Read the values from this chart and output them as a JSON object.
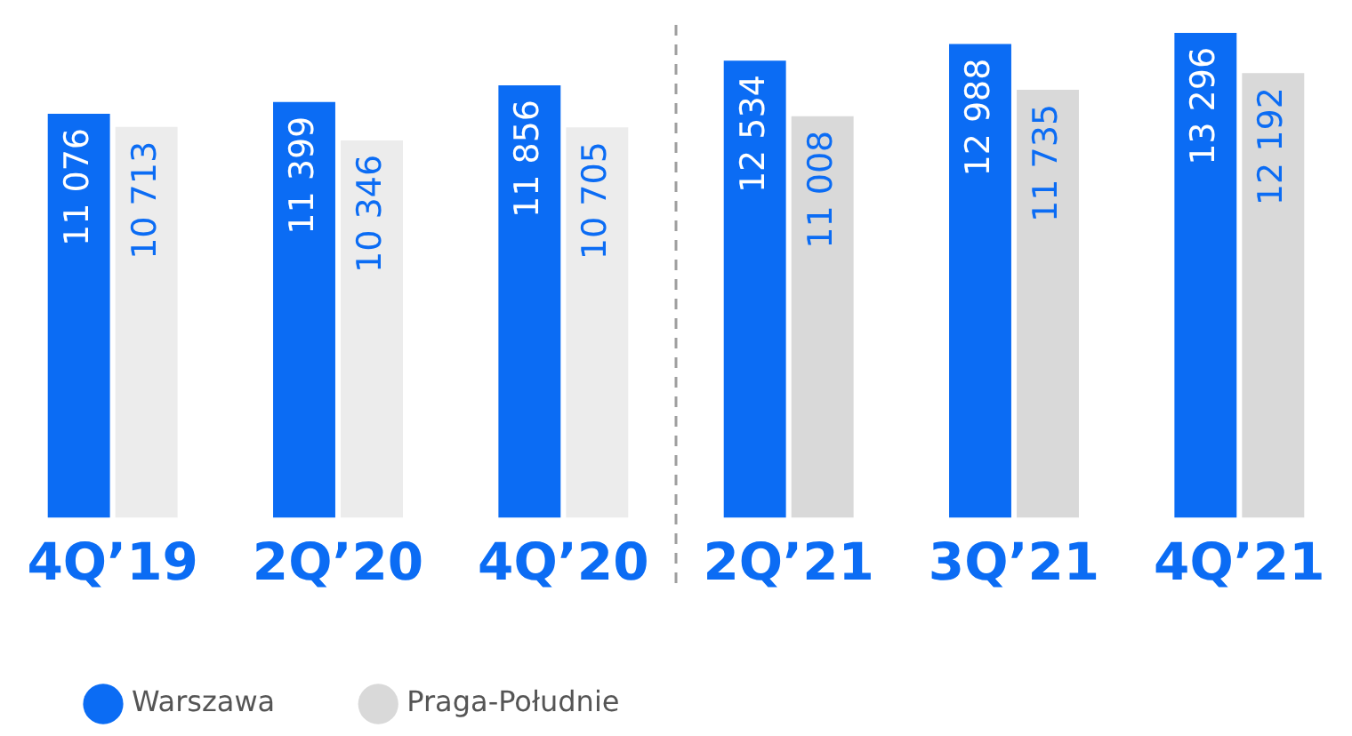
{
  "chart_data": {
    "type": "bar",
    "categories": [
      "4Q’19",
      "2Q’20",
      "4Q’20",
      "2Q’21",
      "3Q’21",
      "4Q’21"
    ],
    "series": [
      {
        "name": "Warszawa",
        "color": "#0b6cf4",
        "values": [
          11076,
          11399,
          11856,
          12534,
          12988,
          13296
        ]
      },
      {
        "name": "Praga-Południe",
        "color": "#d9d9d9",
        "colors": [
          "#ececec",
          "#ececec",
          "#ececec",
          "#d9d9d9",
          "#d9d9d9",
          "#d9d9d9"
        ],
        "values": [
          10713,
          10346,
          10705,
          11008,
          11735,
          12192
        ]
      }
    ],
    "tick_labels": "x",
    "data_labels": true,
    "grid": false,
    "legend": "bottom left"
  }
}
